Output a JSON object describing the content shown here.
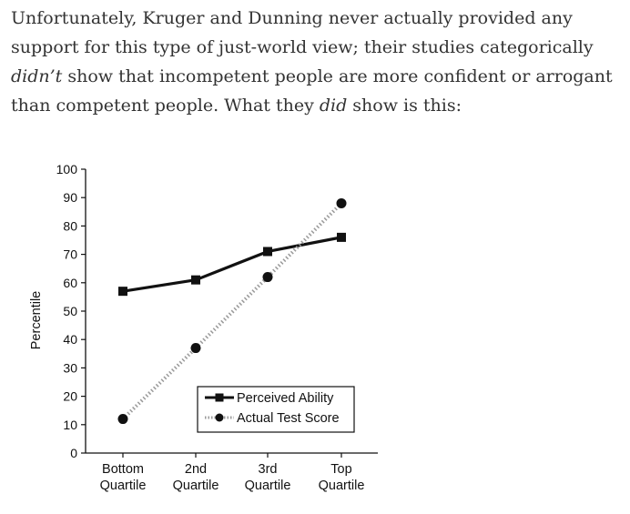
{
  "paragraph": {
    "part1": "Unfortunately, Kruger and Dunning never actually provided any support for this type of just-world view; their studies categorically ",
    "em1": "didn’t",
    "part2": " show that incompetent people are more confident or arrogant than competent people. What they ",
    "em2": "did",
    "part3": " show is this:"
  },
  "chart_data": {
    "type": "line",
    "title": "",
    "xlabel": "",
    "ylabel": "Percentile",
    "ylim": [
      0,
      100
    ],
    "yticks": [
      0,
      10,
      20,
      30,
      40,
      50,
      60,
      70,
      80,
      90,
      100
    ],
    "categories": [
      [
        "Bottom",
        "Quartile"
      ],
      [
        "2nd",
        "Quartile"
      ],
      [
        "3rd",
        "Quartile"
      ],
      [
        "Top",
        "Quartile"
      ]
    ],
    "series": [
      {
        "name": "Perceived Ability",
        "marker": "square",
        "style": "solid",
        "color": "#111111",
        "values": [
          57,
          61,
          71,
          76
        ]
      },
      {
        "name": "Actual Test Score",
        "marker": "circle",
        "style": "dotted",
        "color": "#111111",
        "values": [
          12,
          37,
          62,
          88
        ]
      }
    ],
    "legend": "bottom-right",
    "grid": false
  }
}
